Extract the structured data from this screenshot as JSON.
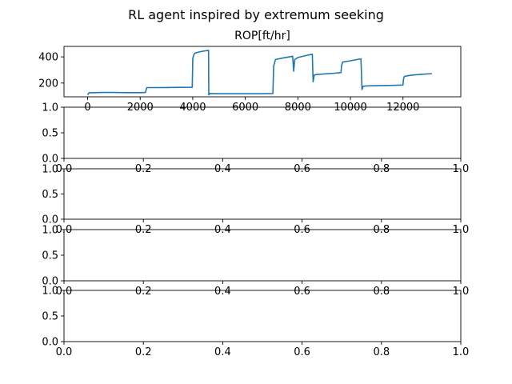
{
  "figure": {
    "suptitle": "RL agent inspired by extremum seeking"
  },
  "chart_data": [
    {
      "type": "line",
      "title": "ROP[ft/hr]",
      "xlabel": "",
      "ylabel": "",
      "xlim": [
        -900,
        14200
      ],
      "ylim": [
        95,
        480
      ],
      "x_ticks": [
        0,
        2000,
        4000,
        6000,
        8000,
        10000,
        12000
      ],
      "x_tick_labels": [
        "0",
        "2000",
        "4000",
        "6000",
        "8000",
        "10000",
        "12000"
      ],
      "y_ticks": [
        200,
        400
      ],
      "y_tick_labels": [
        "200",
        "400"
      ],
      "grid": false,
      "series_color": "#1f77b4",
      "series": [
        {
          "x": [
            0,
            50,
            500,
            1000,
            1500,
            2000,
            2200,
            2220,
            2250,
            2600,
            3000,
            3500,
            3980,
            4000,
            4050,
            4100,
            4300,
            4600,
            4610,
            4650,
            5000,
            5500,
            6000,
            6500,
            7050,
            7080,
            7150,
            7400,
            7800,
            7840,
            7880,
            8000,
            8300,
            8550,
            8580,
            8620,
            8700,
            9000,
            9400,
            9640,
            9660,
            9700,
            10000,
            10400,
            10440,
            10480,
            10600,
            11000,
            11500,
            12000,
            12020,
            12050,
            12150,
            12400,
            12800,
            13100
          ],
          "y": [
            110,
            125,
            128,
            128,
            127,
            127,
            128,
            145,
            165,
            165,
            166,
            167,
            168,
            390,
            420,
            430,
            440,
            450,
            110,
            120,
            118,
            118,
            118,
            118,
            120,
            330,
            380,
            390,
            405,
            290,
            380,
            395,
            410,
            420,
            210,
            260,
            265,
            270,
            275,
            280,
            330,
            360,
            370,
            385,
            150,
            175,
            178,
            180,
            182,
            185,
            230,
            250,
            255,
            262,
            268,
            272
          ]
        }
      ]
    },
    {
      "type": "line",
      "title": "",
      "xlim": [
        0,
        1
      ],
      "ylim": [
        0,
        1
      ],
      "x_tick_labels": [
        "0.0",
        "0.2",
        "0.4",
        "0.6",
        "0.8",
        "1.0"
      ],
      "y_tick_labels": [
        "0.0",
        "0.5",
        "1.0"
      ],
      "grid": false,
      "series": []
    },
    {
      "type": "line",
      "title": "",
      "xlim": [
        0,
        1
      ],
      "ylim": [
        0,
        1
      ],
      "x_tick_labels": [
        "0.0",
        "0.2",
        "0.4",
        "0.6",
        "0.8",
        "1.0"
      ],
      "y_tick_labels": [
        "0.0",
        "0.5",
        "1.0"
      ],
      "grid": false,
      "series": []
    },
    {
      "type": "line",
      "title": "",
      "xlim": [
        0,
        1
      ],
      "ylim": [
        0,
        1
      ],
      "x_tick_labels": [
        "0.0",
        "0.2",
        "0.4",
        "0.6",
        "0.8",
        "1.0"
      ],
      "y_tick_labels": [
        "0.0",
        "0.5",
        "1.0"
      ],
      "grid": false,
      "series": []
    },
    {
      "type": "line",
      "title": "",
      "xlim": [
        0,
        1
      ],
      "ylim": [
        0,
        1
      ],
      "x_tick_labels": [
        "0.0",
        "0.2",
        "0.4",
        "0.6",
        "0.8",
        "1.0"
      ],
      "y_tick_labels": [
        "0.0",
        "0.5",
        "1.0"
      ],
      "grid": false,
      "series": []
    }
  ]
}
